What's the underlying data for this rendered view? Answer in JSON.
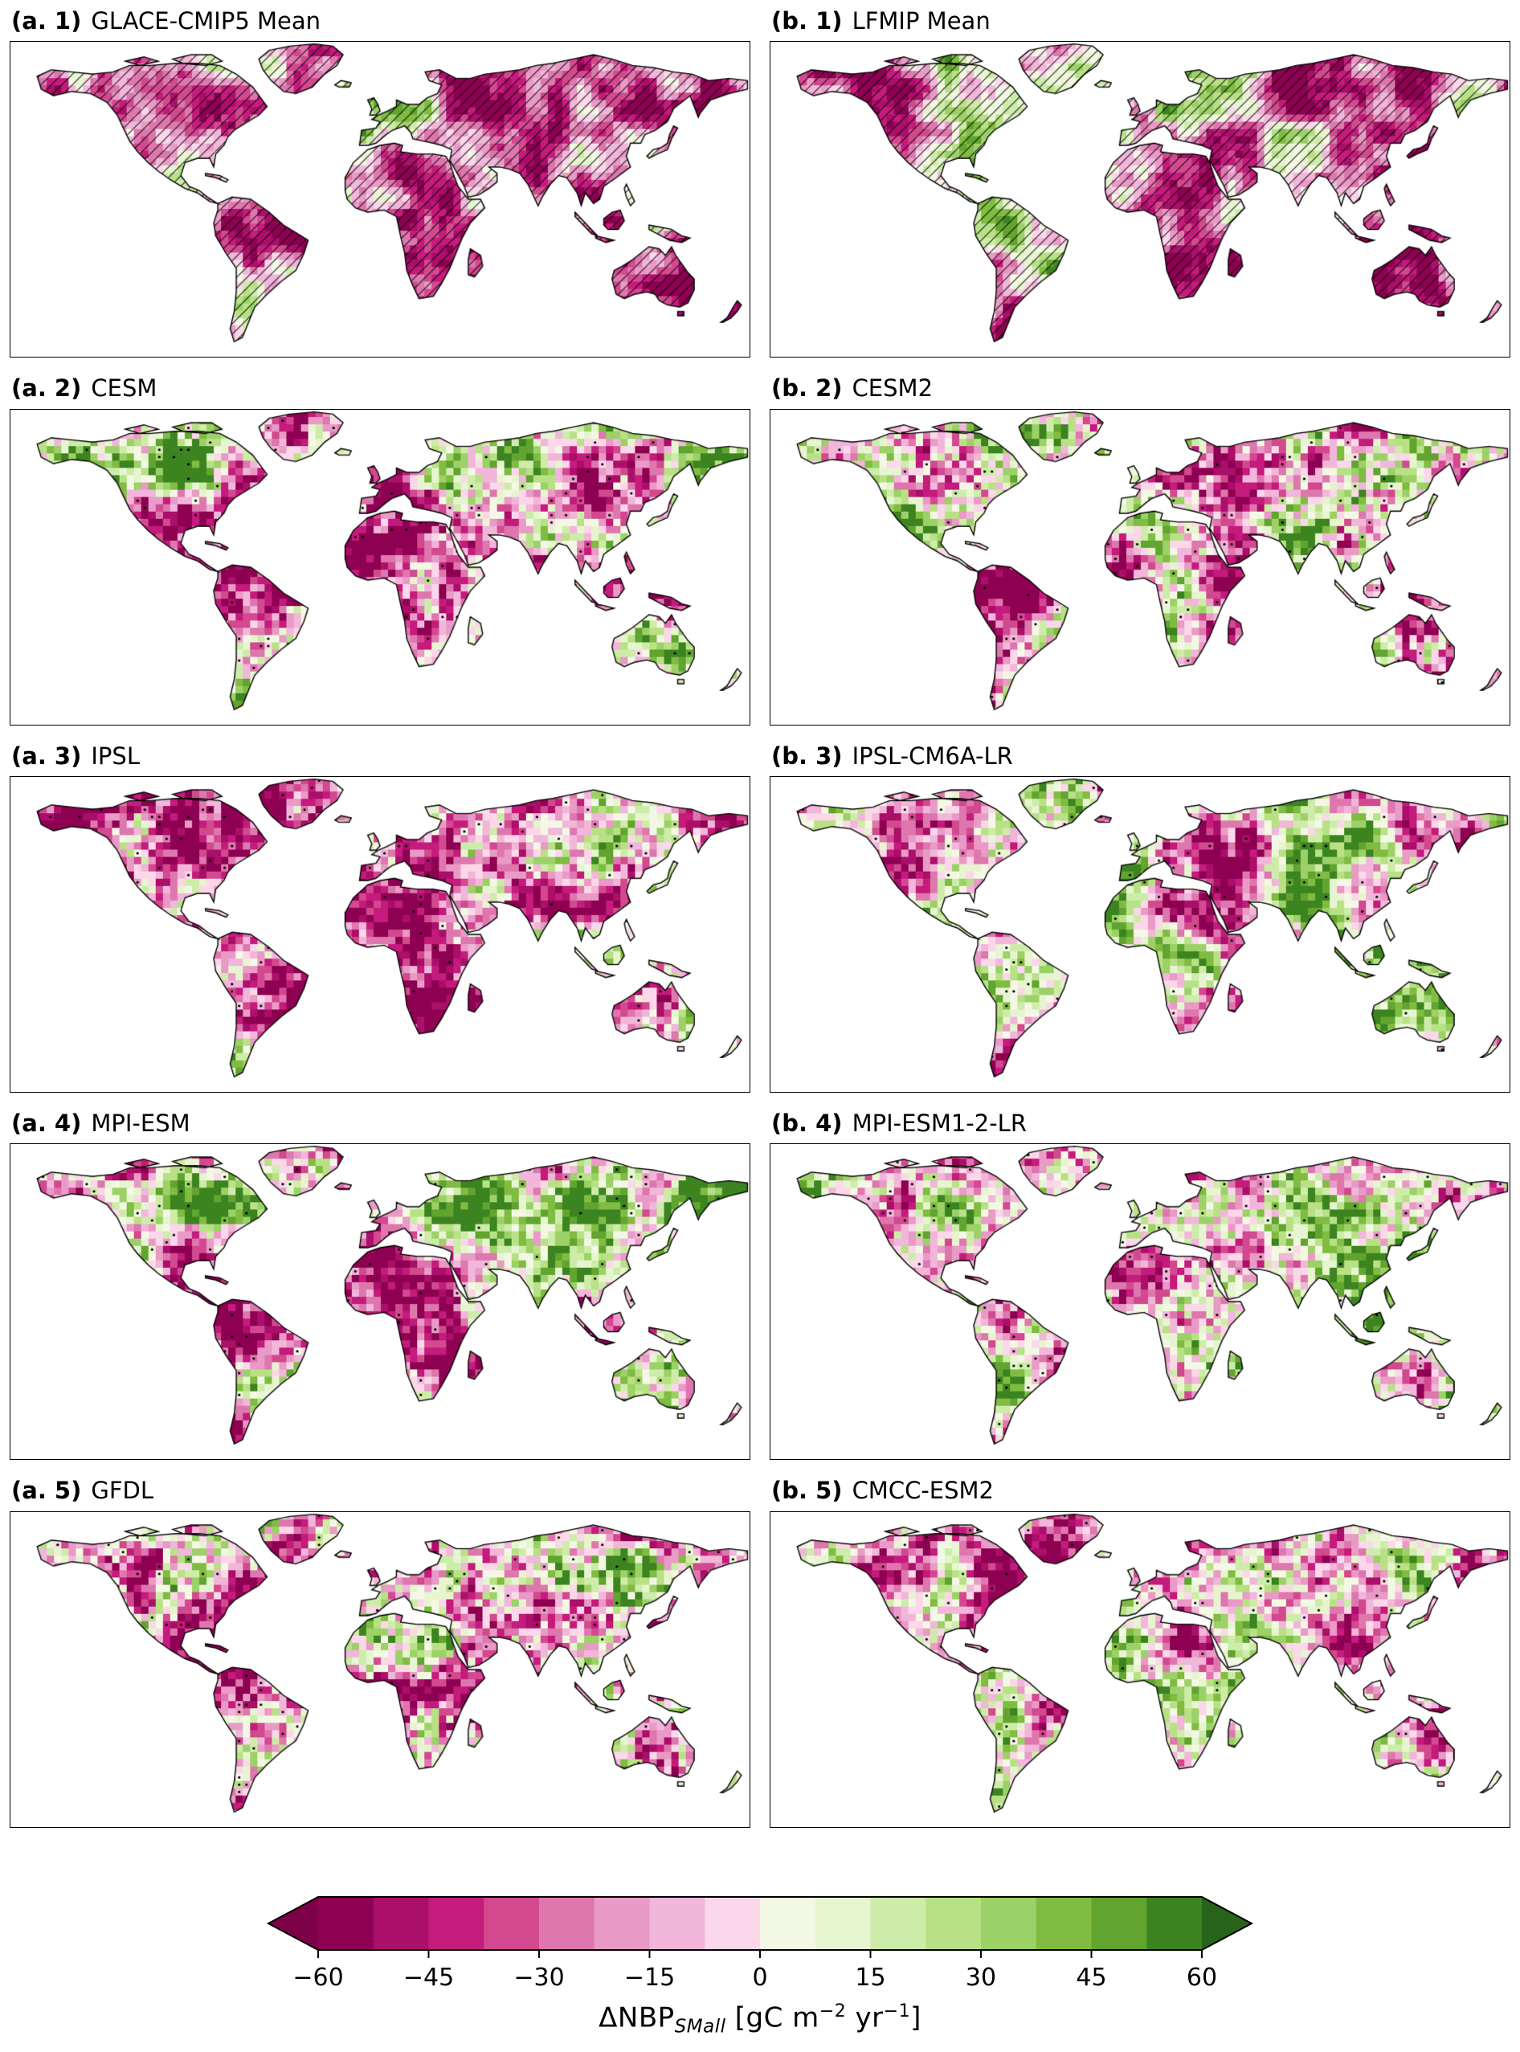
{
  "chart_data": {
    "type": "heatmap",
    "description": "Ten global land maps (2 columns x 5 rows) of simulated net biome productivity change, pink = negative, green = positive, with significance hatching on ensemble-mean panels and stippling dots on individual model panels.",
    "variable": "ΔNBP_SMall",
    "units": "gC m−2 yr−1",
    "value_range": [
      -60,
      60
    ],
    "panels": [
      {
        "id": "a1",
        "label_prefix": "(a. 1)",
        "model": "GLACE-CMIP5 Mean",
        "overlay": "hatching",
        "render": {
          "seed": 3,
          "bias": -18,
          "rough": 0.18,
          "north": 4,
          "tropic": 8
        }
      },
      {
        "id": "b1",
        "label_prefix": "(b. 1)",
        "model": "LFMIP Mean",
        "overlay": "hatching",
        "render": {
          "seed": 17,
          "bias": -14,
          "rough": 0.18,
          "north": 2,
          "tropic": 10
        }
      },
      {
        "id": "a2",
        "label_prefix": "(a. 2)",
        "model": "CESM",
        "overlay": "stippling",
        "render": {
          "seed": 23,
          "bias": -5,
          "rough": 0.6,
          "north": 10,
          "tropic": 8
        }
      },
      {
        "id": "b2",
        "label_prefix": "(b. 2)",
        "model": "CESM2",
        "overlay": "stippling",
        "render": {
          "seed": 37,
          "bias": -7,
          "rough": 0.65,
          "north": 12,
          "tropic": 6
        }
      },
      {
        "id": "a3",
        "label_prefix": "(a. 3)",
        "model": "IPSL",
        "overlay": "stippling",
        "render": {
          "seed": 47,
          "bias": -12,
          "rough": 0.55,
          "north": -8,
          "tropic": 6
        }
      },
      {
        "id": "b3",
        "label_prefix": "(b. 3)",
        "model": "IPSL-CM6A-LR",
        "overlay": "stippling",
        "render": {
          "seed": 59,
          "bias": -2,
          "rough": 0.5,
          "north": 6,
          "tropic": 2
        }
      },
      {
        "id": "a4",
        "label_prefix": "(a. 4)",
        "model": "MPI-ESM",
        "overlay": "stippling",
        "render": {
          "seed": 67,
          "bias": -4,
          "rough": 0.55,
          "north": 30,
          "tropic": 12
        }
      },
      {
        "id": "b4",
        "label_prefix": "(b. 4)",
        "model": "MPI-ESM1-2-LR",
        "overlay": "stippling",
        "render": {
          "seed": 79,
          "bias": 2,
          "rough": 0.6,
          "north": 4,
          "tropic": -6
        }
      },
      {
        "id": "a5",
        "label_prefix": "(a. 5)",
        "model": "GFDL",
        "overlay": "stippling",
        "render": {
          "seed": 89,
          "bias": -15,
          "rough": 0.7,
          "north": 8,
          "tropic": 4
        }
      },
      {
        "id": "b5",
        "label_prefix": "(b. 5)",
        "model": "CMCC-ESM2",
        "overlay": "stippling",
        "render": {
          "seed": 97,
          "bias": -10,
          "rough": 0.55,
          "north": -2,
          "tropic": 10
        }
      }
    ],
    "colorbar": {
      "ticks": [
        -60,
        -45,
        -30,
        -15,
        0,
        15,
        30,
        45,
        60
      ],
      "tick_labels": [
        "−60",
        "−45",
        "−30",
        "−15",
        "0",
        "15",
        "30",
        "45",
        "60"
      ],
      "colors": [
        "#8e0152",
        "#ab0f6a",
        "#c51b7d",
        "#d3498f",
        "#de77ae",
        "#e99ac6",
        "#f1b6da",
        "#fbd7e9",
        "#f3f8e4",
        "#e6f5d0",
        "#ceeca9",
        "#b8e186",
        "#9cd168",
        "#7fbc41",
        "#62a430",
        "#3c8420"
      ],
      "arrow_left_color": "#7c0147",
      "arrow_right_color": "#276419",
      "label": {
        "name": "ΔNBP",
        "subscript": "SMall",
        "units_open": " [gC m",
        "exp1": "−2",
        "units_mid": " yr",
        "exp2": "−1",
        "units_close": "]"
      }
    }
  }
}
